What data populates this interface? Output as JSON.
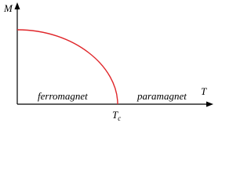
{
  "axes": {
    "y_label": "M",
    "x_label": "T"
  },
  "regions": {
    "left": "ferromagnet",
    "right": "paramagnet"
  },
  "critical_point": {
    "main": "T",
    "sub": "c"
  }
}
